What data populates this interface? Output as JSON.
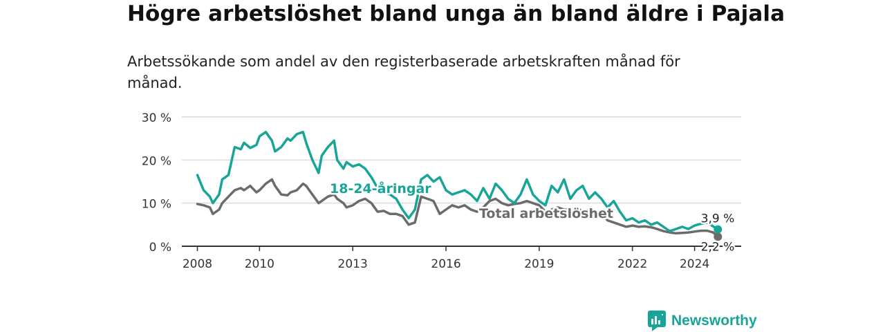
{
  "header": {
    "title": "Högre arbetslöshet bland unga än bland äldre i Pajala",
    "subtitle": "Arbetssökande som andel av den registerbaserade arbetskraften månad för månad."
  },
  "brand": {
    "name": "Newsworthy",
    "logo_icon": "bar-chart-speech-bubble-icon",
    "color": "#16a597"
  },
  "chart_data": {
    "type": "line",
    "y_ticks": [
      "0 %",
      "10 %",
      "20 %",
      "30 %"
    ],
    "y_tick_values": [
      0,
      10,
      20,
      30
    ],
    "x_ticks": [
      "2008",
      "2010",
      "2013",
      "2016",
      "2019",
      "2022",
      "2024"
    ],
    "x_tick_values": [
      2008,
      2010,
      2013,
      2016,
      2019,
      2022,
      2024
    ],
    "xlim": [
      2007.5,
      2025.5
    ],
    "ylim": [
      0,
      30
    ],
    "grid": true,
    "series": [
      {
        "name": "18-24-åringar",
        "color": "#16a597",
        "end_label": "3,9 %",
        "points": [
          [
            2008.0,
            16.5
          ],
          [
            2008.2,
            13
          ],
          [
            2008.4,
            11.5
          ],
          [
            2008.5,
            10
          ],
          [
            2008.7,
            12
          ],
          [
            2008.8,
            15.5
          ],
          [
            2009.0,
            16.5
          ],
          [
            2009.2,
            23
          ],
          [
            2009.4,
            22.5
          ],
          [
            2009.5,
            24
          ],
          [
            2009.7,
            22.8
          ],
          [
            2009.9,
            23.5
          ],
          [
            2010.0,
            25.5
          ],
          [
            2010.2,
            26.5
          ],
          [
            2010.4,
            24.5
          ],
          [
            2010.5,
            22
          ],
          [
            2010.7,
            23
          ],
          [
            2010.9,
            25
          ],
          [
            2011.0,
            24.5
          ],
          [
            2011.2,
            26
          ],
          [
            2011.4,
            26.5
          ],
          [
            2011.5,
            24
          ],
          [
            2011.7,
            20
          ],
          [
            2011.9,
            17
          ],
          [
            2012.0,
            21
          ],
          [
            2012.2,
            23
          ],
          [
            2012.4,
            24.5
          ],
          [
            2012.5,
            20
          ],
          [
            2012.7,
            18
          ],
          [
            2012.8,
            19.5
          ],
          [
            2013.0,
            18.5
          ],
          [
            2013.2,
            19
          ],
          [
            2013.4,
            18
          ],
          [
            2013.6,
            16
          ],
          [
            2013.8,
            13.5
          ],
          [
            2014.0,
            12.5
          ],
          [
            2014.2,
            12
          ],
          [
            2014.4,
            11
          ],
          [
            2014.6,
            8.5
          ],
          [
            2014.8,
            6.5
          ],
          [
            2015.0,
            8.5
          ],
          [
            2015.2,
            15.5
          ],
          [
            2015.4,
            16.5
          ],
          [
            2015.6,
            15
          ],
          [
            2015.8,
            16
          ],
          [
            2016.0,
            13
          ],
          [
            2016.2,
            12
          ],
          [
            2016.4,
            12.5
          ],
          [
            2016.6,
            13
          ],
          [
            2016.8,
            12
          ],
          [
            2017.0,
            10.5
          ],
          [
            2017.2,
            13.5
          ],
          [
            2017.4,
            11
          ],
          [
            2017.6,
            14.5
          ],
          [
            2017.8,
            13
          ],
          [
            2018.0,
            11
          ],
          [
            2018.2,
            10
          ],
          [
            2018.4,
            12
          ],
          [
            2018.6,
            15.5
          ],
          [
            2018.8,
            12
          ],
          [
            2019.0,
            10.5
          ],
          [
            2019.2,
            9.5
          ],
          [
            2019.4,
            14
          ],
          [
            2019.6,
            12.5
          ],
          [
            2019.8,
            15.5
          ],
          [
            2020.0,
            11
          ],
          [
            2020.2,
            13
          ],
          [
            2020.4,
            14
          ],
          [
            2020.6,
            11
          ],
          [
            2020.8,
            12.5
          ],
          [
            2021.0,
            11
          ],
          [
            2021.2,
            9
          ],
          [
            2021.4,
            10.5
          ],
          [
            2021.6,
            8
          ],
          [
            2021.8,
            6
          ],
          [
            2022.0,
            6.5
          ],
          [
            2022.2,
            5.5
          ],
          [
            2022.4,
            6
          ],
          [
            2022.6,
            5
          ],
          [
            2022.8,
            5.5
          ],
          [
            2023.0,
            4.5
          ],
          [
            2023.2,
            3.5
          ],
          [
            2023.4,
            4
          ],
          [
            2023.6,
            4.5
          ],
          [
            2023.8,
            4
          ],
          [
            2024.0,
            4.8
          ],
          [
            2024.2,
            5.2
          ],
          [
            2024.4,
            5.5
          ],
          [
            2024.6,
            4.6
          ],
          [
            2024.75,
            3.9
          ]
        ]
      },
      {
        "name": "Total arbetslöshet",
        "color": "#6b6b6b",
        "end_label": "2,2 %",
        "points": [
          [
            2008.0,
            9.8
          ],
          [
            2008.2,
            9.5
          ],
          [
            2008.4,
            9
          ],
          [
            2008.5,
            7.5
          ],
          [
            2008.7,
            8.5
          ],
          [
            2008.8,
            10
          ],
          [
            2009.0,
            11.5
          ],
          [
            2009.2,
            13
          ],
          [
            2009.4,
            13.5
          ],
          [
            2009.5,
            13
          ],
          [
            2009.7,
            14
          ],
          [
            2009.9,
            12.5
          ],
          [
            2010.0,
            13
          ],
          [
            2010.2,
            14.5
          ],
          [
            2010.4,
            15.5
          ],
          [
            2010.5,
            14
          ],
          [
            2010.7,
            12
          ],
          [
            2010.9,
            11.8
          ],
          [
            2011.0,
            12.5
          ],
          [
            2011.2,
            13
          ],
          [
            2011.4,
            14.5
          ],
          [
            2011.5,
            14
          ],
          [
            2011.7,
            12
          ],
          [
            2011.9,
            10
          ],
          [
            2012.0,
            10.5
          ],
          [
            2012.2,
            11.5
          ],
          [
            2012.4,
            12
          ],
          [
            2012.5,
            11
          ],
          [
            2012.7,
            10
          ],
          [
            2012.8,
            9
          ],
          [
            2013.0,
            9.5
          ],
          [
            2013.2,
            10.5
          ],
          [
            2013.4,
            11
          ],
          [
            2013.6,
            10
          ],
          [
            2013.8,
            8
          ],
          [
            2014.0,
            8.2
          ],
          [
            2014.2,
            7.5
          ],
          [
            2014.4,
            7.5
          ],
          [
            2014.6,
            7
          ],
          [
            2014.8,
            5
          ],
          [
            2015.0,
            5.5
          ],
          [
            2015.2,
            11.5
          ],
          [
            2015.4,
            11
          ],
          [
            2015.6,
            10.5
          ],
          [
            2015.8,
            7.5
          ],
          [
            2016.0,
            8.5
          ],
          [
            2016.2,
            9.5
          ],
          [
            2016.4,
            9
          ],
          [
            2016.6,
            9.5
          ],
          [
            2016.8,
            8.5
          ],
          [
            2017.0,
            8
          ],
          [
            2017.2,
            9
          ],
          [
            2017.4,
            10.5
          ],
          [
            2017.6,
            11
          ],
          [
            2017.8,
            10
          ],
          [
            2018.0,
            9.5
          ],
          [
            2018.2,
            9.8
          ],
          [
            2018.4,
            10
          ],
          [
            2018.6,
            10.5
          ],
          [
            2018.8,
            10
          ],
          [
            2019.0,
            9.5
          ],
          [
            2019.2,
            8
          ],
          [
            2019.4,
            8.5
          ],
          [
            2019.6,
            9
          ],
          [
            2019.8,
            8.5
          ],
          [
            2020.0,
            8.5
          ],
          [
            2020.2,
            9
          ],
          [
            2020.4,
            8
          ],
          [
            2020.6,
            8.5
          ],
          [
            2020.8,
            8
          ],
          [
            2021.0,
            7.5
          ],
          [
            2021.2,
            6
          ],
          [
            2021.4,
            5.5
          ],
          [
            2021.6,
            5
          ],
          [
            2021.8,
            4.5
          ],
          [
            2022.0,
            4.8
          ],
          [
            2022.2,
            4.5
          ],
          [
            2022.4,
            4.6
          ],
          [
            2022.6,
            4.4
          ],
          [
            2022.8,
            4
          ],
          [
            2023.0,
            3.5
          ],
          [
            2023.2,
            3.2
          ],
          [
            2023.4,
            3
          ],
          [
            2023.6,
            3.1
          ],
          [
            2023.8,
            3.2
          ],
          [
            2024.0,
            3.4
          ],
          [
            2024.2,
            3.6
          ],
          [
            2024.4,
            3.6
          ],
          [
            2024.6,
            3.2
          ],
          [
            2024.75,
            2.2
          ]
        ]
      }
    ]
  }
}
